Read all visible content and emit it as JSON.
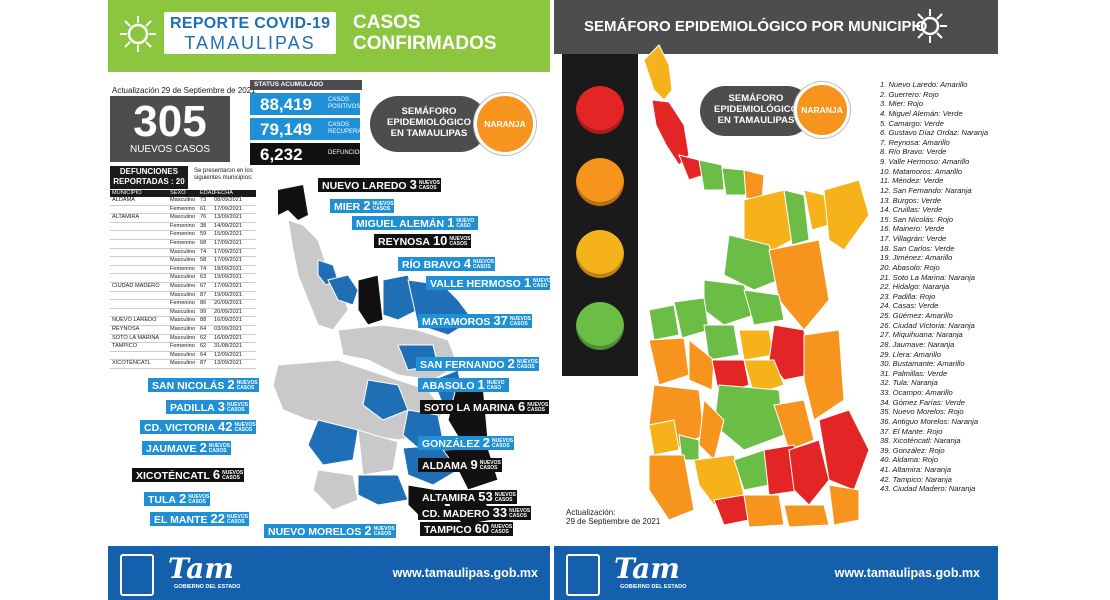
{
  "left": {
    "title_line1": "REPORTE COVID-19",
    "title_line2": "TAMAULIPAS",
    "heading_line1": "CASOS",
    "heading_line2": "CONFIRMADOS",
    "update": "Actualización 29 de Septiembre de 2021",
    "new_cases": "305",
    "new_cases_label": "NUEVOS CASOS",
    "status_header": "STATUS ACUMULADO",
    "stats": [
      {
        "value": "88,419",
        "label1": "CASOS",
        "label2": "POSITIVOS",
        "color": "#1f8fd6"
      },
      {
        "value": "79,149",
        "label1": "CASOS",
        "label2": "RECUPERADOS",
        "color": "#1f8fd6"
      },
      {
        "value": "6,232",
        "label1": "DEFUNCIONES",
        "label2": "",
        "color": "#111111"
      }
    ],
    "semaforo_line1": "SEMÁFORO",
    "semaforo_line2": "EPIDEMIOLÓGICO",
    "semaforo_line3": "EN TAMAULIPAS",
    "semaforo_status": "NARANJA",
    "deaths_title_line1": "DEFUNCIONES",
    "deaths_title_line2": "REPORTADAS : 20",
    "deaths_note": "Se presentaron en los siguientes municipios:",
    "deaths_headers": [
      "MUNICIPIO",
      "SEXO",
      "EDAD",
      "FECHA DEFUNCIÓN"
    ],
    "deaths_rows": [
      [
        "ALDAMA",
        "Masculino",
        "73",
        "08/09/2021"
      ],
      [
        "",
        "Femenino",
        "61",
        "17/09/2021"
      ],
      [
        "ALTAMIRA",
        "Masculino",
        "76",
        "13/09/2021"
      ],
      [
        "",
        "Femenino",
        "38",
        "14/09/2021"
      ],
      [
        "",
        "Femenino",
        "59",
        "15/09/2021"
      ],
      [
        "",
        "Femenino",
        "68",
        "17/09/2021"
      ],
      [
        "",
        "Masculino",
        "74",
        "17/09/2021"
      ],
      [
        "",
        "Masculino",
        "58",
        "17/09/2021"
      ],
      [
        "",
        "Femenino",
        "74",
        "18/09/2021"
      ],
      [
        "",
        "Masculino",
        "63",
        "19/09/2021"
      ],
      [
        "CIUDAD MADERO",
        "Masculino",
        "67",
        "17/09/2021"
      ],
      [
        "",
        "Masculino",
        "87",
        "19/09/2021"
      ],
      [
        "",
        "Femenino",
        "86",
        "20/09/2021"
      ],
      [
        "",
        "Masculino",
        "99",
        "20/09/2021"
      ],
      [
        "NUEVO LAREDO",
        "Masculino",
        "88",
        "16/09/2021"
      ],
      [
        "REYNOSA",
        "Masculino",
        "64",
        "03/09/2021"
      ],
      [
        "SOTO LA MARINA",
        "Masculino",
        "62",
        "16/09/2021"
      ],
      [
        "TAMPICO",
        "Femenino",
        "62",
        "31/08/2021"
      ],
      [
        "",
        "Masculino",
        "64",
        "12/09/2021"
      ],
      [
        "XICOTÉNCATL",
        "Masculino",
        "87",
        "13/09/2021"
      ]
    ],
    "nuevos": "NUEVOS CASOS",
    "nuevo": "NUEVO CASO",
    "municipalities": [
      {
        "name": "NUEVO LAREDO",
        "count": "3",
        "style": "black",
        "plural": true
      },
      {
        "name": "MIER",
        "count": "2",
        "style": "blue",
        "plural": true
      },
      {
        "name": "MIGUEL ALEMÁN",
        "count": "1",
        "style": "blue",
        "plural": false
      },
      {
        "name": "REYNOSA",
        "count": "10",
        "style": "black",
        "plural": true
      },
      {
        "name": "RÍO BRAVO",
        "count": "4",
        "style": "blue",
        "plural": true
      },
      {
        "name": "VALLE HERMOSO",
        "count": "1",
        "style": "blue",
        "plural": false
      },
      {
        "name": "MATAMOROS",
        "count": "37",
        "style": "blue",
        "plural": true
      },
      {
        "name": "SAN FERNANDO",
        "count": "2",
        "style": "blue",
        "plural": true
      },
      {
        "name": "SAN NICOLÁS",
        "count": "2",
        "style": "blue",
        "plural": true
      },
      {
        "name": "ABASOLO",
        "count": "1",
        "style": "blue",
        "plural": false
      },
      {
        "name": "PADILLA",
        "count": "3",
        "style": "blue",
        "plural": true
      },
      {
        "name": "SOTO LA MARINA",
        "count": "6",
        "style": "black",
        "plural": true
      },
      {
        "name": "CD. VICTORIA",
        "count": "42",
        "style": "blue",
        "plural": true
      },
      {
        "name": "JAUMAVE",
        "count": "2",
        "style": "blue",
        "plural": true
      },
      {
        "name": "GONZÁLEZ",
        "count": "2",
        "style": "blue",
        "plural": true
      },
      {
        "name": "XICOTÉNCATL",
        "count": "6",
        "style": "black",
        "plural": true
      },
      {
        "name": "ALDAMA",
        "count": "9",
        "style": "black",
        "plural": true
      },
      {
        "name": "TULA",
        "count": "2",
        "style": "blue",
        "plural": true
      },
      {
        "name": "ALTAMIRA",
        "count": "53",
        "style": "black",
        "plural": true
      },
      {
        "name": "EL MANTE",
        "count": "22",
        "style": "blue",
        "plural": true
      },
      {
        "name": "CD. MADERO",
        "count": "33",
        "style": "black",
        "plural": true
      },
      {
        "name": "NUEVO MORELOS",
        "count": "2",
        "style": "blue",
        "plural": true
      },
      {
        "name": "TAMPICO",
        "count": "60",
        "style": "black",
        "plural": true
      }
    ],
    "logo": "Tam",
    "logo_sub": "GOBIERNO DEL ESTADO",
    "url": "www.tamaulipas.gob.mx"
  },
  "right": {
    "title": "SEMÁFORO EPIDEMIOLÓGICO POR MUNICIPIO",
    "semaforo_line1": "SEMÁFORO",
    "semaforo_line2": "EPIDEMIOLÓGICO",
    "semaforo_line3": "EN TAMAULIPAS",
    "semaforo_status": "NARANJA",
    "lights": [
      "#e32526",
      "#f7941d",
      "#f5b21b",
      "#6cbd45"
    ],
    "municipalities": [
      "1. Nuevo Laredo: Amarillo",
      "2. Guerrero: Rojo",
      "3. Mier: Rojo",
      "4. Miguel Alemán: Verde",
      "5. Camargo: Verde",
      "6. Gustavo Díaz Ordaz: Naranja",
      "7. Reynosa: Amarillo",
      "8. Río Bravo: Verde",
      "9. Valle Hermoso: Amarillo",
      "10. Matamoros: Amarillo",
      "11. Méndez: Verde",
      "12. San Fernando: Naranja",
      "13. Burgos: Verde",
      "14. Cruillas: Verde",
      "15. San Nicolás: Rojo",
      "16. Mainero: Verde",
      "17. Villagrán: Verde",
      "18. San Carlos: Verde",
      "19. Jiménez: Amarillo",
      "20. Abasolo: Rojo",
      "21. Soto La Marina: Naranja",
      "22. Hidalgo: Naranja",
      "23. Padilla: Rojo",
      "24. Casas: Verde",
      "25. Güémez: Amarillo",
      "26. Ciudad Victoria: Naranja",
      "27. Miquihuana: Naranja",
      "28. Jaumave: Naranja",
      "29. Llera: Amarillo",
      "30. Bustamante: Amarillo",
      "31. Palmillas: Verde",
      "32. Tula: Naranja",
      "33. Ocampo: Amarillo",
      "34. Gómez Farías: Verde",
      "35. Nuevo Morelos: Rojo",
      "36. Antiguo Morelos: Naranja",
      "37. El Mante: Rojo",
      "38. Xicoténcatl: Naranja",
      "39. González: Rojo",
      "40. Aldama: Rojo",
      "41. Altamira: Naranja",
      "42. Tampico: Naranja",
      "43. Ciudad Madero: Naranja"
    ],
    "update_line1": "Actualización:",
    "update_line2": "29 de Septiembre de 2021",
    "logo": "Tam",
    "logo_sub": "GOBIERNO DEL ESTADO",
    "url": "www.tamaulipas.gob.mx"
  },
  "colors": {
    "green_header": "#8cc63f",
    "blue": "#1f8fd6",
    "dark": "#4d4d4d",
    "footer": "#1560ac",
    "orange": "#f7941d",
    "red": "#e32526",
    "yellow": "#f5b21b",
    "green": "#6cbd45"
  }
}
